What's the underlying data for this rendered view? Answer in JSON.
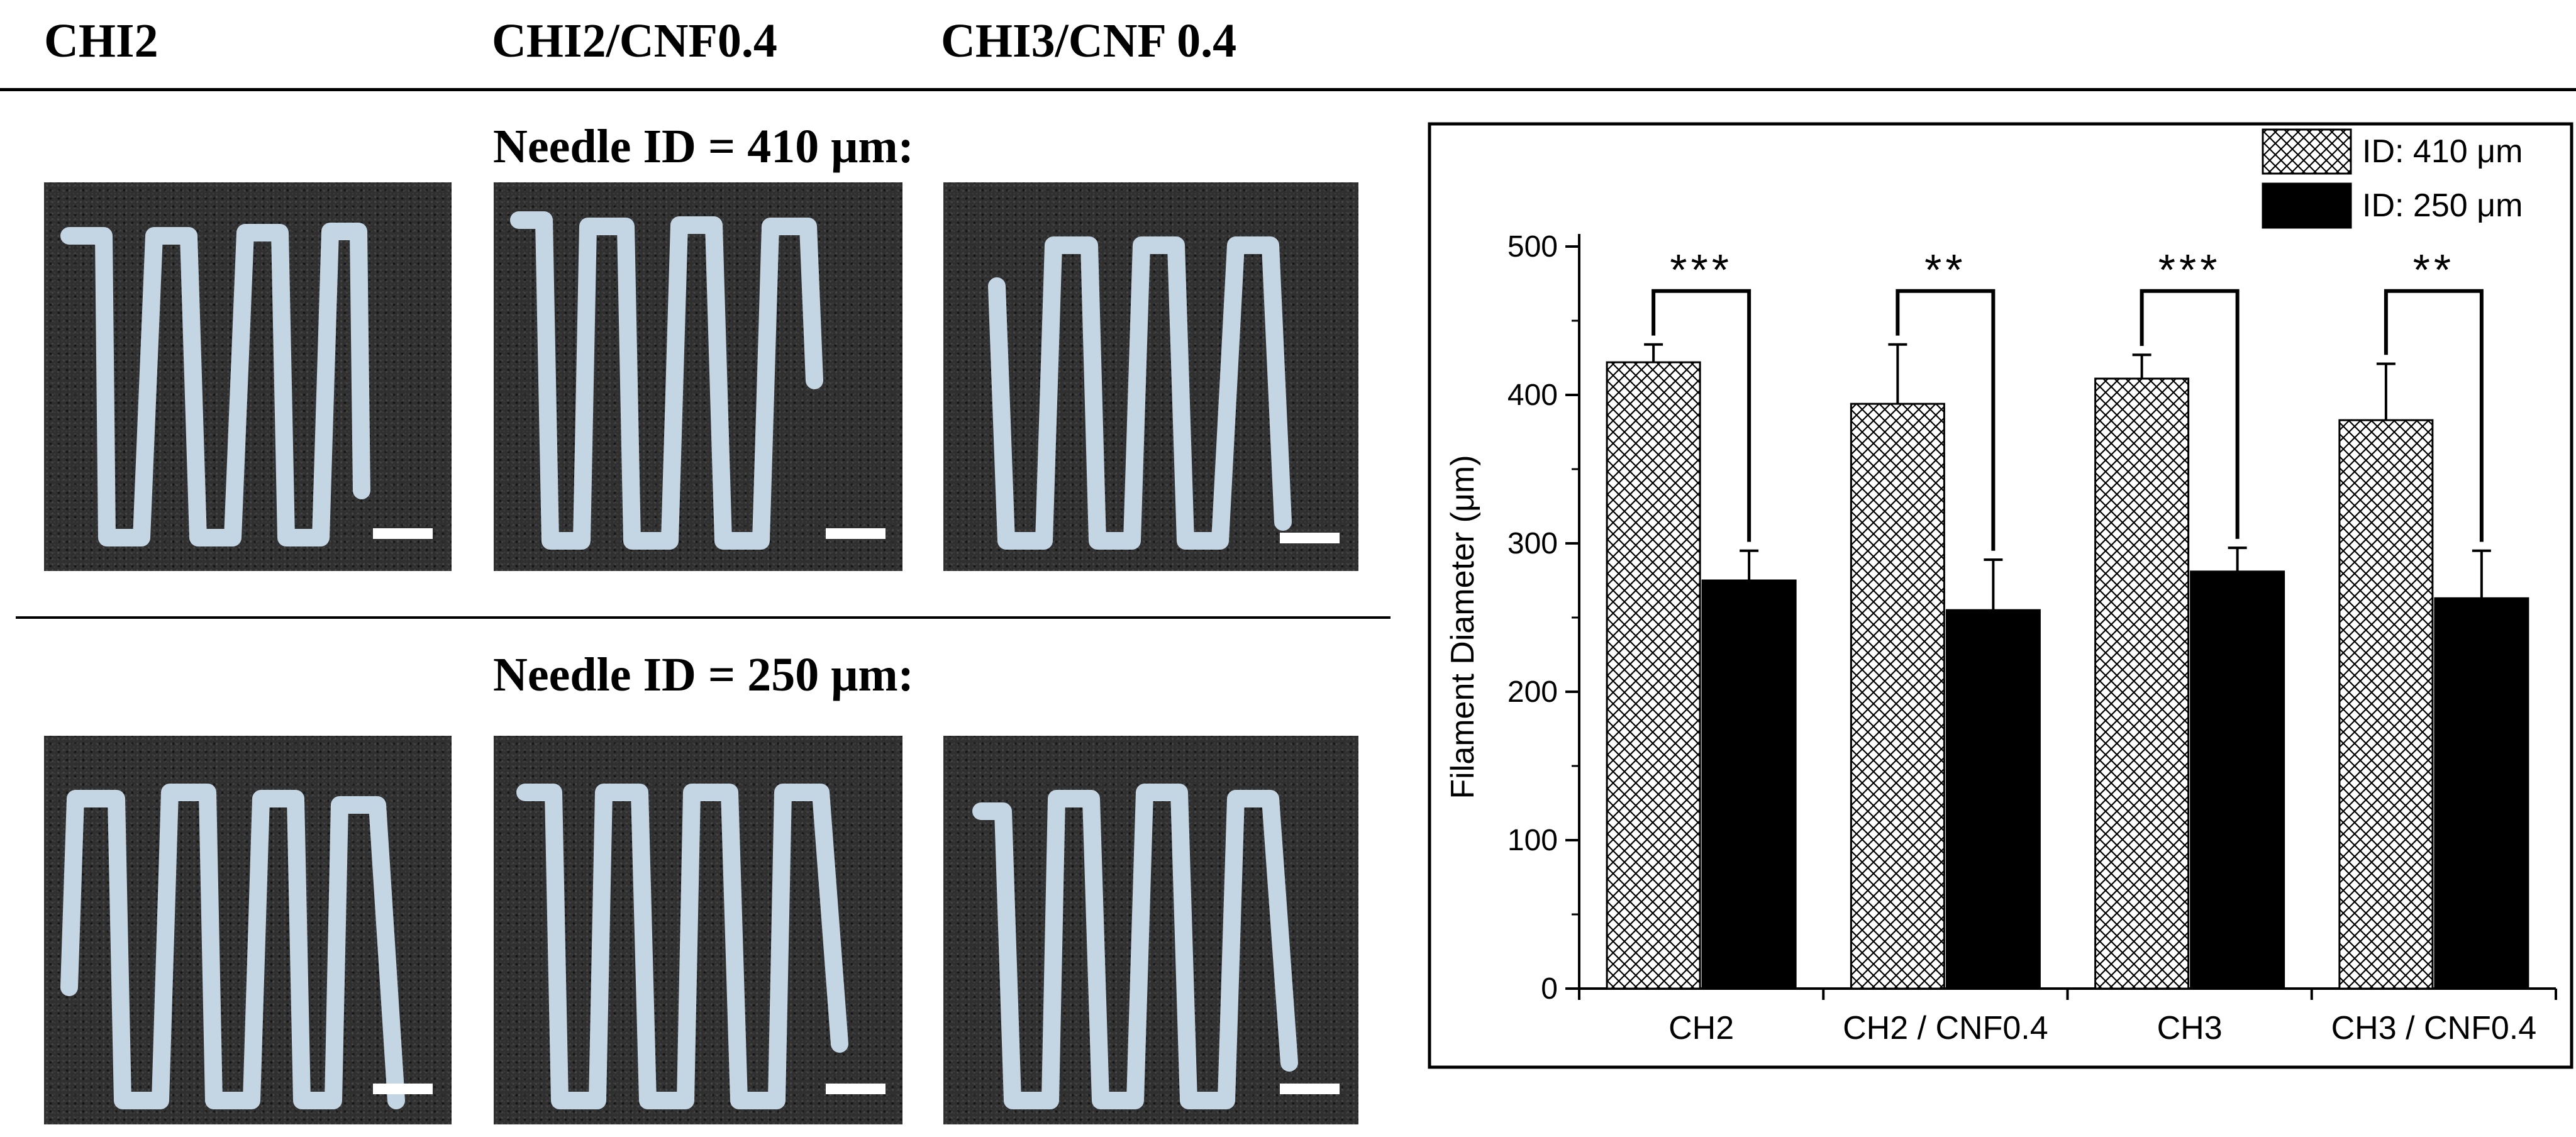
{
  "column_headers": [
    "CHI2",
    "CHI2/CNF0.4",
    "CHI3/CNF 0.4"
  ],
  "section_titles": {
    "row1": "Needle ID = 410 μm:",
    "row2": "Needle ID = 250 μm:"
  },
  "colors": {
    "filament": "#c4d6e4",
    "substrate": "#2f2f2f",
    "bar_410": "#ffffff",
    "bar_250": "#000000"
  },
  "chart_data": {
    "type": "bar",
    "categories": [
      "CH2",
      "CH2 / CNF0.4",
      "CH3",
      "CH3 / CNF0.4"
    ],
    "series": [
      {
        "name": "ID: 410 μm",
        "pattern": "crosshatch",
        "values": [
          422,
          394,
          411,
          383
        ],
        "errors": [
          12,
          40,
          16,
          38
        ]
      },
      {
        "name": "ID: 250 μm",
        "pattern": "solid",
        "values": [
          275,
          255,
          281,
          263
        ],
        "errors": [
          20,
          34,
          16,
          32
        ]
      }
    ],
    "significance": [
      "***",
      "**",
      "***",
      "**"
    ],
    "ylabel": "Filament Diameter (μm)",
    "xlabel": "",
    "ylim": [
      0,
      500
    ],
    "yticks": [
      0,
      100,
      200,
      300,
      400,
      500
    ],
    "legend_position": "top-right",
    "grid": false
  }
}
